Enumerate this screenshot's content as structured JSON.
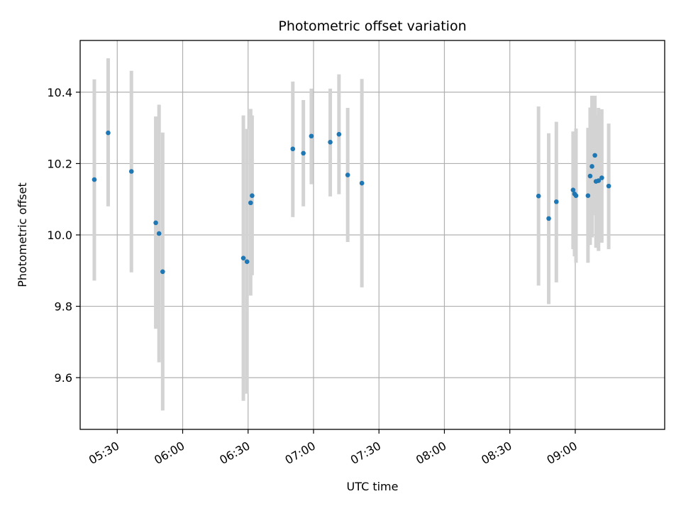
{
  "chart_data": {
    "type": "scatter",
    "title": "Photometric offset variation",
    "xlabel": "UTC time",
    "ylabel": "Photometric offset",
    "x_unit": "UTC time HH:MM",
    "xlim": [
      "05:13",
      "09:41"
    ],
    "ylim": [
      9.455,
      10.545
    ],
    "x_ticks": [
      "05:30",
      "06:00",
      "06:30",
      "07:00",
      "07:30",
      "08:00",
      "08:30",
      "09:00"
    ],
    "y_ticks": [
      9.6,
      9.8,
      10.0,
      10.2,
      10.4
    ],
    "grid": true,
    "colors": {
      "marker": "#1f77b4",
      "errorbar": "#d3d3d3",
      "grid": "#b0b0b0"
    },
    "points": [
      {
        "x": "05:19:30",
        "y": 10.155,
        "lo": 9.872,
        "hi": 10.436
      },
      {
        "x": "05:25:50",
        "y": 10.286,
        "lo": 10.08,
        "hi": 10.495
      },
      {
        "x": "05:36:30",
        "y": 10.178,
        "lo": 9.895,
        "hi": 10.46
      },
      {
        "x": "05:47:40",
        "y": 10.034,
        "lo": 9.737,
        "hi": 10.332
      },
      {
        "x": "05:49:10",
        "y": 10.004,
        "lo": 9.643,
        "hi": 10.365
      },
      {
        "x": "05:50:50",
        "y": 9.897,
        "lo": 9.508,
        "hi": 10.287
      },
      {
        "x": "06:27:50",
        "y": 9.935,
        "lo": 9.535,
        "hi": 10.335
      },
      {
        "x": "06:29:30",
        "y": 9.925,
        "lo": 9.555,
        "hi": 10.297
      },
      {
        "x": "06:31:10",
        "y": 10.09,
        "lo": 9.83,
        "hi": 10.353
      },
      {
        "x": "06:31:50",
        "y": 10.11,
        "lo": 9.887,
        "hi": 10.335
      },
      {
        "x": "06:50:30",
        "y": 10.241,
        "lo": 10.05,
        "hi": 10.43
      },
      {
        "x": "06:55:20",
        "y": 10.229,
        "lo": 10.08,
        "hi": 10.378
      },
      {
        "x": "06:59:00",
        "y": 10.277,
        "lo": 10.142,
        "hi": 10.41
      },
      {
        "x": "07:07:40",
        "y": 10.26,
        "lo": 10.108,
        "hi": 10.41
      },
      {
        "x": "07:11:40",
        "y": 10.282,
        "lo": 10.114,
        "hi": 10.45
      },
      {
        "x": "07:15:40",
        "y": 10.168,
        "lo": 9.98,
        "hi": 10.356
      },
      {
        "x": "07:22:10",
        "y": 10.145,
        "lo": 9.853,
        "hi": 10.437
      },
      {
        "x": "08:43:10",
        "y": 10.109,
        "lo": 9.858,
        "hi": 10.36
      },
      {
        "x": "08:47:50",
        "y": 10.046,
        "lo": 9.806,
        "hi": 10.285
      },
      {
        "x": "08:51:20",
        "y": 10.093,
        "lo": 9.867,
        "hi": 10.317
      },
      {
        "x": "08:59:00",
        "y": 10.126,
        "lo": 9.96,
        "hi": 10.29
      },
      {
        "x": "08:59:40",
        "y": 10.115,
        "lo": 9.94,
        "hi": 10.29
      },
      {
        "x": "09:00:20",
        "y": 10.11,
        "lo": 9.922,
        "hi": 10.298
      },
      {
        "x": "09:05:50",
        "y": 10.11,
        "lo": 9.922,
        "hi": 10.3
      },
      {
        "x": "09:06:50",
        "y": 10.165,
        "lo": 9.972,
        "hi": 10.357
      },
      {
        "x": "09:07:40",
        "y": 10.192,
        "lo": 9.993,
        "hi": 10.39
      },
      {
        "x": "09:09:00",
        "y": 10.223,
        "lo": 10.055,
        "hi": 10.39
      },
      {
        "x": "09:09:30",
        "y": 10.15,
        "lo": 9.964,
        "hi": 10.336
      },
      {
        "x": "09:10:40",
        "y": 10.152,
        "lo": 9.955,
        "hi": 10.356
      },
      {
        "x": "09:12:10",
        "y": 10.16,
        "lo": 9.978,
        "hi": 10.352
      },
      {
        "x": "09:15:20",
        "y": 10.137,
        "lo": 9.96,
        "hi": 10.312
      }
    ]
  }
}
